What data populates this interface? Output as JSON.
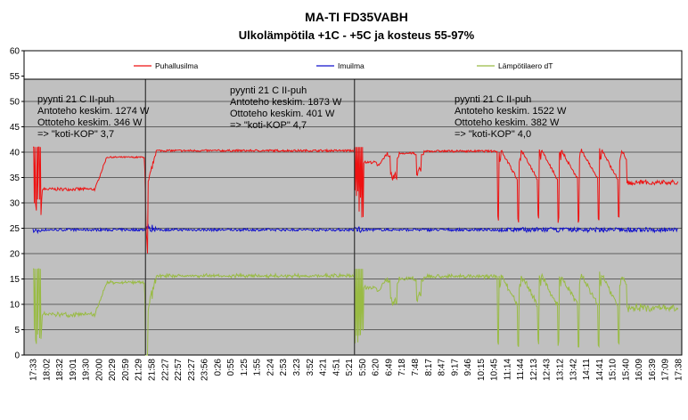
{
  "chart_data": {
    "type": "line",
    "title": "MA-TI FD35VABH",
    "subtitle": "Ulkolämpötila +1C - +5C ja kosteus 55-97%",
    "xlabel": "",
    "ylabel": "",
    "ylim": [
      0,
      60
    ],
    "y_ticks": [
      0,
      5,
      10,
      15,
      20,
      25,
      30,
      35,
      40,
      45,
      50,
      55,
      60
    ],
    "x_tick_labels": [
      "17:33",
      "18:02",
      "18:32",
      "19:01",
      "19:30",
      "20:00",
      "20:29",
      "20:59",
      "21:29",
      "21:58",
      "22:27",
      "22:57",
      "23:27",
      "23:56",
      "0:26",
      "0:55",
      "1:25",
      "1:55",
      "2:24",
      "2:53",
      "3:23",
      "3:52",
      "4:21",
      "4:51",
      "5:21",
      "5:50",
      "6:20",
      "6:49",
      "7:18",
      "7:48",
      "8:17",
      "8:47",
      "9:17",
      "9:46",
      "10:15",
      "10:45",
      "11:14",
      "11:44",
      "12:13",
      "12:43",
      "13:12",
      "13:42",
      "14:11",
      "14:41",
      "15:10",
      "15:40",
      "16:09",
      "16:39",
      "17:09",
      "17:38"
    ],
    "grid": true,
    "legend_placement": "top",
    "background_color": "#c0c0c0",
    "series": [
      {
        "name": "Puhallusilma",
        "color": "#ee1111",
        "segments": [
          {
            "x": [
              0,
              0.25,
              0.4,
              0.6,
              0.75,
              0.9,
              1.05,
              1.2,
              1.35,
              1.5,
              1.65,
              1.8,
              1.95,
              2.1,
              2.2,
              2.6,
              3.5,
              5,
              6.5,
              8,
              8.8,
              9.2,
              10.0,
              10.8,
              11.5,
              12.5,
              13.5,
              14.5,
              15.5,
              16.5,
              17.5,
              18.5,
              18.7,
              18.9,
              19.05,
              19.2,
              19.5,
              19.8,
              20.2,
              20.8,
              22,
              25,
              30,
              35,
              40,
              42.3
            ],
            "y": [
              28,
              41,
              29,
              41,
              30,
              41,
              31,
              41,
              32,
              41,
              33,
              41,
              31,
              37,
              33,
              33,
              33,
              32.8,
              32.5,
              32.7,
              32.3,
              33,
              33,
              33,
              34,
              37,
              38.8,
              39,
              39,
              39,
              39,
              39,
              39,
              39,
              39,
              39,
              39,
              39,
              39,
              39,
              39,
              39.1,
              39.3,
              39.5,
              39.3,
              39.5
            ]
          },
          {
            "x": [
              42.3,
              42.6,
              42.9,
              43.2,
              43.5,
              43.8,
              44.1,
              44.5
            ],
            "y": [
              39.5,
              39.2,
              39,
              38.8,
              38.7,
              38.6,
              38.5,
              38.5
            ]
          },
          {
            "x": [
              44.5,
              44.6,
              44.7,
              45.2,
              45.8,
              46.5,
              47.3,
              48
            ],
            "y": [
              38.5,
              18,
              40,
              34,
              33,
              34,
              36,
              38
            ]
          },
          {
            "x": [
              48,
              49,
              50,
              52,
              55,
              60,
              70,
              80,
              90,
              100,
              110,
              120,
              130,
              140,
              150,
              160,
              170,
              180,
              190,
              196
            ],
            "y": [
              39.2,
              39.5,
              40,
              40.3,
              40.5,
              40.6,
              40.7,
              40.8,
              40.7,
              40.6,
              40.6,
              40.5,
              40.6,
              40.5,
              40.5,
              40.4,
              40.5,
              40.4,
              40.4,
              40.3
            ]
          },
          {
            "x": [
              196,
              196.3,
              196.6,
              196.9,
              197.2,
              197.5,
              197.8,
              198.1,
              198.4,
              198.7,
              199,
              199.3,
              199.6,
              199.9,
              200.2,
              200.5,
              200.8,
              201.1,
              201.4,
              201.7,
              202,
              202.3,
              202.6,
              202.9,
              203.2,
              203.5,
              203.8,
              204.1,
              204.4,
              204.7,
              205
            ],
            "y": [
              40.2,
              30,
              41,
              32,
              40,
              28,
              41,
              31,
              40,
              33,
              41,
              27,
              40,
              32,
              41,
              30,
              40,
              34,
              41,
              31,
              40,
              35,
              41,
              33,
              41,
              30,
              40,
              35,
              36,
              37,
              38.5
            ]
          },
          {
            "x": [
              205,
              207,
              209,
              212,
              215,
              218,
              221,
              224,
              227,
              230
            ],
            "y": [
              38.5,
              37.5,
              37.5,
              37.5,
              37.5,
              37.5,
              37,
              37,
              37.5,
              38
            ]
          },
          {
            "x": [
              230,
              232,
              234,
              236,
              238,
              240,
              242,
              244,
              246,
              248,
              250,
              252,
              254,
              256,
              258,
              260,
              262,
              264,
              266
            ],
            "y": [
              38,
              39,
              39.5,
              40,
              40,
              40,
              40,
              40,
              40,
              40,
              40,
              39.8,
              39.8,
              39.5,
              39.5,
              39.8,
              40,
              39.8,
              39.8
            ]
          },
          {
            "x": [
              266,
              267,
              268,
              269,
              270,
              271,
              272,
              273,
              274,
              275,
              276,
              277,
              278,
              279,
              280,
              281,
              282,
              283
            ],
            "y": [
              40,
              39,
              34,
              36,
              38,
              32,
              36,
              34,
              39,
              37,
              38,
              39,
              39,
              38,
              39,
              38,
              38,
              38.5
            ]
          },
          {
            "x": [
              283,
              300,
              310,
              320,
              330,
              340,
              350,
              360,
              370,
              380,
              390,
              400,
              410,
              420,
              430,
              440,
              450,
              460,
              470,
              480,
              490,
              500,
              510,
              520,
              530
            ],
            "y": [
              38.5,
              39.5,
              39.2,
              39.3,
              39.3,
              39.5,
              39.5,
              39.3,
              39.5,
              39.5,
              39.2,
              39.5,
              39.5,
              39.5,
              39.4,
              39.4,
              39.5,
              39.5,
              39.5,
              39.5,
              39.5,
              39.2,
              39.5,
              40,
              40
            ]
          },
          {
            "x": [
              530,
              550,
              570,
              590,
              610,
              630,
              650,
              670,
              690,
              710,
              730,
              750,
              770,
              790,
              810,
              830,
              850,
              870,
              890,
              910,
              920
            ],
            "y": [
              40,
              40,
              40,
              40,
              40,
              40,
              40,
              40,
              40,
              40,
              40,
              40,
              40,
              40,
              40,
              40,
              40,
              40,
              40,
              40,
              40
            ]
          },
          {
            "x": [
              920,
              940,
              960,
              980,
              1000,
              1020,
              1040,
              1060,
              1080,
              1100,
              1120,
              1140,
              1160,
              1180,
              1200
            ],
            "y": [
              40,
              40.5,
              40.5,
              40.5,
              40.5,
              40.3,
              40.5,
              40.5,
              40.3,
              40.5,
              40.5,
              40.3,
              40.3,
              40.5,
              40.5
            ]
          }
        ]
      },
      {
        "name": "Imuilma",
        "color": "#1111cc",
        "values_note": ""
      },
      {
        "name": "Lämpötilaero dT",
        "color": "#99bb44"
      }
    ],
    "annotations": [
      {
        "lines": [
          "pyynti 21 C II-puh",
          "Antoteho keskim. 1274 W",
          "Ottoteho keskim. 346 W",
          "=> \"koti-KOP\" 3,7"
        ]
      },
      {
        "lines": [
          "pyynti 21 C II-puh",
          "Antoteho keskim. 1873 W",
          "Ottoteho keskim. 401 W",
          "=> \"koti-KOP\" 4,7"
        ]
      },
      {
        "lines": [
          "pyynti 21 C II-puh",
          "Antoteho keskim. 1522 W",
          "Ottoteho keskim. 382 W",
          "=> \"koti-KOP\" 4,0"
        ]
      }
    ]
  }
}
